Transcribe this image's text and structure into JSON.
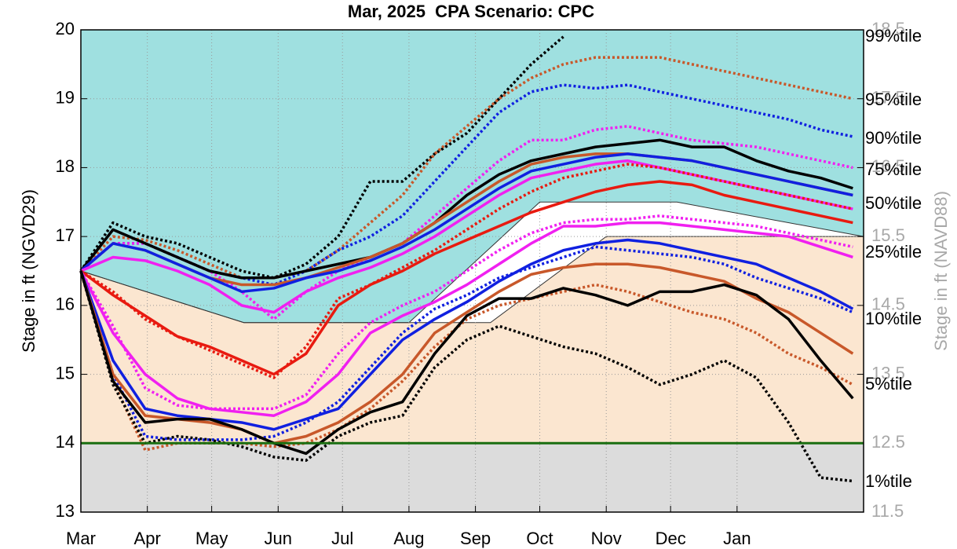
{
  "chart_data": {
    "type": "line",
    "title": "Mar, 2025  CPA Scenario: CPC",
    "ylabel": "Stage in ft (NGVD29)",
    "y2label": "Stage in ft (NAVD88)",
    "xlim": [
      0,
      365
    ],
    "xticks": [
      {
        "value": 0,
        "label": "Mar"
      },
      {
        "value": 31,
        "label": "Apr"
      },
      {
        "value": 61,
        "label": "May"
      },
      {
        "value": 92,
        "label": "Jun"
      },
      {
        "value": 122,
        "label": "Jul"
      },
      {
        "value": 153,
        "label": "Aug"
      },
      {
        "value": 184,
        "label": "Sep"
      },
      {
        "value": 214,
        "label": "Oct"
      },
      {
        "value": 245,
        "label": "Nov"
      },
      {
        "value": 275,
        "label": "Dec"
      },
      {
        "value": 306,
        "label": "Jan"
      }
    ],
    "ylim": [
      13,
      20
    ],
    "yticks": [
      13,
      14,
      15,
      16,
      17,
      18,
      19,
      20
    ],
    "y2lim": [
      11.5,
      18.5
    ],
    "y2ticks": [
      11.5,
      12.5,
      13.5,
      14.5,
      15.5,
      16.5,
      17.5,
      18.5
    ],
    "grid": true,
    "upper_zone": {
      "color": "#9fe0e0",
      "x": [
        0,
        76,
        153,
        214,
        278,
        365
      ],
      "y": [
        16.5,
        15.75,
        15.75,
        17.5,
        17.5,
        17.0
      ]
    },
    "lower_zone": {
      "color": "#fbe6d0",
      "x": [
        0,
        76,
        191,
        245,
        365
      ],
      "y": [
        16.5,
        15.75,
        15.75,
        17.0,
        17.0
      ]
    },
    "floor_zone": {
      "color": "#dcdcdc"
    },
    "reference_line": {
      "value": 14,
      "color": "#1a6e10"
    },
    "annotations": [
      "99%tile",
      "95%tile",
      "90%tile",
      "75%tile",
      "50%tile",
      "25%tile",
      "10%tile",
      "5%tile",
      "1%tile"
    ],
    "x": [
      0,
      15,
      30,
      45,
      60,
      75,
      90,
      105,
      120,
      135,
      150,
      165,
      180,
      195,
      210,
      225,
      240,
      255,
      270,
      285,
      300,
      315,
      330,
      345,
      360
    ],
    "series": [
      {
        "color": "#000000",
        "style": "dotted",
        "values": [
          16.5,
          17.2,
          17.0,
          16.9,
          16.7,
          16.5,
          16.4,
          16.6,
          17.0,
          17.8,
          17.8,
          18.2,
          18.5,
          19.0,
          19.5,
          19.9,
          null,
          null,
          null,
          null,
          null,
          null,
          null,
          null,
          null
        ]
      },
      {
        "color": "#c8582a",
        "style": "dotted",
        "values": [
          16.5,
          17.0,
          16.95,
          16.8,
          16.6,
          16.4,
          16.4,
          16.5,
          16.8,
          17.2,
          17.6,
          18.2,
          18.6,
          19.0,
          19.3,
          19.5,
          19.6,
          19.6,
          19.6,
          19.5,
          19.4,
          19.3,
          19.2,
          19.1,
          19.0
        ]
      },
      {
        "color": "#1020e0",
        "style": "dotted",
        "values": [
          16.5,
          16.9,
          16.9,
          16.7,
          16.5,
          16.4,
          16.3,
          16.5,
          16.8,
          17.0,
          17.3,
          17.8,
          18.3,
          18.8,
          19.1,
          19.2,
          19.15,
          19.2,
          19.1,
          19.0,
          18.9,
          18.8,
          18.7,
          18.55,
          18.45
        ]
      },
      {
        "color": "#f020f0",
        "style": "dotted",
        "values": [
          16.5,
          16.9,
          16.9,
          16.7,
          16.5,
          16.2,
          15.8,
          16.2,
          16.5,
          16.7,
          16.9,
          17.3,
          17.7,
          18.1,
          18.4,
          18.4,
          18.55,
          18.6,
          18.5,
          18.4,
          18.35,
          18.3,
          18.2,
          18.1,
          18.0
        ]
      },
      {
        "color": "#000000",
        "style": "solid",
        "values": [
          16.5,
          17.1,
          16.9,
          16.7,
          16.5,
          16.4,
          16.4,
          16.5,
          16.6,
          16.7,
          16.9,
          17.2,
          17.6,
          17.9,
          18.1,
          18.2,
          18.3,
          18.35,
          18.4,
          18.3,
          18.3,
          18.1,
          17.95,
          17.85,
          17.7
        ]
      },
      {
        "color": "#c8582a",
        "style": "solid",
        "values": [
          16.5,
          16.9,
          16.8,
          16.6,
          16.4,
          16.3,
          16.3,
          16.4,
          16.55,
          16.7,
          16.9,
          17.2,
          17.5,
          17.8,
          18.05,
          18.15,
          18.2,
          18.2,
          18.15,
          18.1,
          18.0,
          17.9,
          17.8,
          17.7,
          17.6
        ]
      },
      {
        "color": "#1020e0",
        "style": "solid",
        "values": [
          16.5,
          16.9,
          16.8,
          16.6,
          16.4,
          16.2,
          16.25,
          16.4,
          16.5,
          16.65,
          16.85,
          17.1,
          17.4,
          17.7,
          17.95,
          18.05,
          18.15,
          18.2,
          18.15,
          18.1,
          18.0,
          17.9,
          17.8,
          17.7,
          17.6
        ]
      },
      {
        "color": "#f020f0",
        "style": "solid",
        "values": [
          16.5,
          16.7,
          16.65,
          16.5,
          16.3,
          16.0,
          15.9,
          16.2,
          16.4,
          16.55,
          16.75,
          17.0,
          17.3,
          17.6,
          17.85,
          17.95,
          18.05,
          18.1,
          18.0,
          17.9,
          17.8,
          17.7,
          17.6,
          17.5,
          17.4
        ]
      },
      {
        "color": "#e81a10",
        "style": "dotted",
        "values": [
          16.5,
          16.2,
          15.8,
          15.55,
          15.35,
          15.15,
          14.95,
          15.4,
          16.1,
          16.3,
          16.55,
          16.8,
          17.1,
          17.4,
          17.65,
          17.85,
          17.95,
          18.05,
          18.0,
          17.9,
          17.8,
          17.7,
          17.6,
          17.5,
          17.4
        ]
      },
      {
        "color": "#e81a10",
        "style": "solid",
        "values": [
          16.5,
          16.15,
          15.85,
          15.55,
          15.4,
          15.2,
          15.0,
          15.3,
          16.0,
          16.3,
          16.5,
          16.75,
          16.95,
          17.15,
          17.35,
          17.5,
          17.65,
          17.75,
          17.8,
          17.75,
          17.6,
          17.5,
          17.4,
          17.3,
          17.2
        ]
      },
      {
        "color": "#f020f0",
        "style": "dotted",
        "values": [
          16.5,
          15.7,
          14.8,
          14.55,
          14.5,
          14.5,
          14.5,
          14.7,
          15.3,
          15.75,
          16.0,
          16.2,
          16.5,
          16.8,
          17.05,
          17.2,
          17.25,
          17.25,
          17.3,
          17.25,
          17.2,
          17.15,
          17.05,
          16.95,
          16.85
        ]
      },
      {
        "color": "#f020f0",
        "style": "solid",
        "values": [
          16.5,
          15.6,
          15.0,
          14.65,
          14.5,
          14.45,
          14.4,
          14.6,
          15.0,
          15.6,
          15.85,
          16.05,
          16.3,
          16.6,
          16.9,
          17.15,
          17.15,
          17.2,
          17.2,
          17.15,
          17.1,
          17.05,
          17.0,
          16.85,
          16.7
        ]
      },
      {
        "color": "#1020e0",
        "style": "solid",
        "values": [
          16.5,
          15.2,
          14.5,
          14.4,
          14.35,
          14.3,
          14.2,
          14.35,
          14.5,
          15.0,
          15.5,
          15.8,
          16.05,
          16.35,
          16.6,
          16.8,
          16.9,
          16.95,
          16.9,
          16.8,
          16.7,
          16.6,
          16.4,
          16.2,
          15.95
        ]
      },
      {
        "color": "#1020e0",
        "style": "dotted",
        "values": [
          16.5,
          15.0,
          14.1,
          14.05,
          14.05,
          14.05,
          14.1,
          14.3,
          14.6,
          15.1,
          15.6,
          15.95,
          16.15,
          16.4,
          16.55,
          16.7,
          16.85,
          16.8,
          16.75,
          16.7,
          16.6,
          16.4,
          16.25,
          16.1,
          15.9
        ]
      },
      {
        "color": "#c8582a",
        "style": "solid",
        "values": [
          16.5,
          15.0,
          14.4,
          14.35,
          14.3,
          14.2,
          14.0,
          14.1,
          14.3,
          14.6,
          15.0,
          15.6,
          15.9,
          16.2,
          16.45,
          16.55,
          16.6,
          16.6,
          16.55,
          16.45,
          16.35,
          16.1,
          15.9,
          15.6,
          15.3
        ]
      },
      {
        "color": "#c8582a",
        "style": "dotted",
        "values": [
          16.5,
          14.9,
          13.9,
          14.0,
          14.0,
          14.0,
          13.95,
          14.0,
          14.2,
          14.5,
          14.9,
          15.4,
          15.8,
          16.0,
          16.1,
          16.2,
          16.3,
          16.2,
          16.05,
          15.9,
          15.8,
          15.6,
          15.3,
          15.1,
          14.85
        ]
      },
      {
        "color": "#000000",
        "style": "solid",
        "values": [
          16.5,
          14.9,
          14.3,
          14.35,
          14.35,
          14.2,
          14.0,
          13.85,
          14.2,
          14.45,
          14.6,
          15.3,
          15.85,
          16.1,
          16.1,
          16.25,
          16.15,
          16.0,
          16.2,
          16.2,
          16.3,
          16.15,
          15.8,
          15.2,
          14.65
        ]
      },
      {
        "color": "#000000",
        "style": "dotted",
        "values": [
          16.5,
          14.85,
          14.0,
          14.1,
          14.05,
          13.95,
          13.8,
          13.75,
          14.1,
          14.3,
          14.4,
          15.1,
          15.5,
          15.7,
          15.55,
          15.4,
          15.3,
          15.1,
          14.85,
          15.0,
          15.2,
          14.95,
          14.3,
          13.5,
          13.45
        ]
      }
    ]
  }
}
